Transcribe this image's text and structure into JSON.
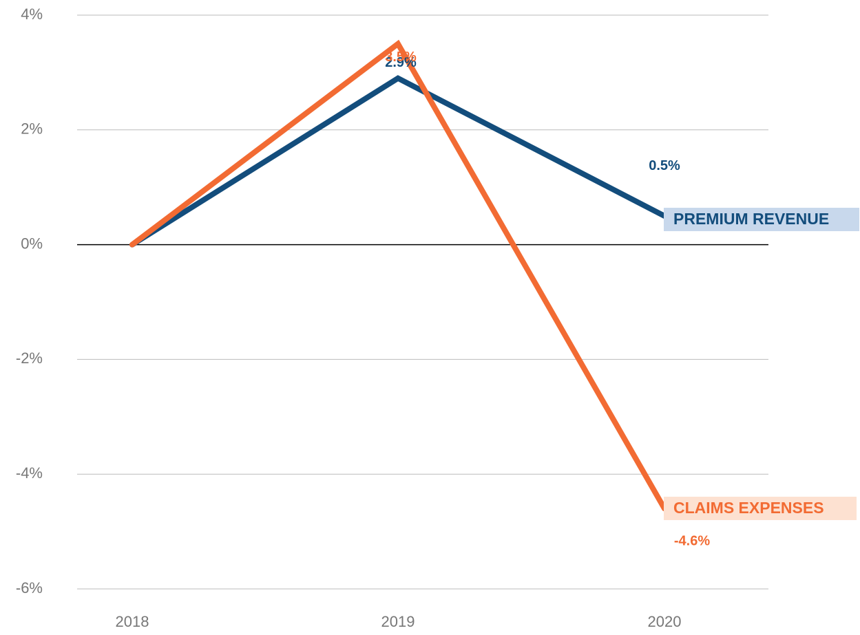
{
  "chart_data": {
    "type": "line",
    "categories": [
      "2018",
      "2019",
      "2020"
    ],
    "series": [
      {
        "name": "PREMIUM REVENUE",
        "color": "#134d7c",
        "label_bg": "#c8d8ec",
        "values": [
          0,
          2.9,
          0.5
        ],
        "value_labels": [
          null,
          "2.9%",
          "0.5%"
        ]
      },
      {
        "name": "CLAIMS EXPENSES",
        "color": "#f26b33",
        "label_bg": "#fde1d1",
        "values": [
          0,
          3.5,
          -4.6
        ],
        "value_labels": [
          null,
          "3.5%",
          "-4.6%"
        ]
      }
    ],
    "ylim": [
      -6,
      4
    ],
    "yticks": [
      {
        "value": 4,
        "label": "4%"
      },
      {
        "value": 2,
        "label": "2%"
      },
      {
        "value": 0,
        "label": "0%"
      },
      {
        "value": -2,
        "label": "-2%"
      },
      {
        "value": -4,
        "label": "-4%"
      },
      {
        "value": -6,
        "label": "-6%"
      }
    ],
    "grid": true
  }
}
